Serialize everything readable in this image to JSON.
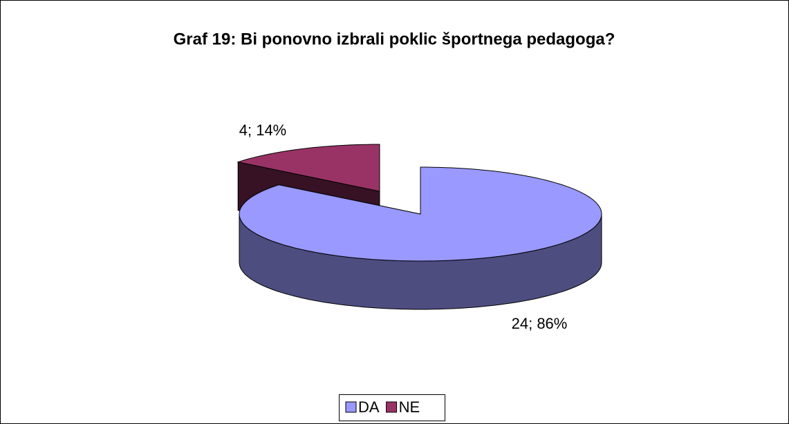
{
  "chart_data": {
    "type": "pie",
    "title": "Graf 19: Bi ponovno izbrali poklic športnega pedagoga?",
    "categories": [
      "DA",
      "NE"
    ],
    "values": [
      24,
      4
    ],
    "value_labels": [
      "24; 86%",
      "4; 14%"
    ],
    "colors": [
      "#9999ff",
      "#993366"
    ],
    "legend": "bottom"
  }
}
